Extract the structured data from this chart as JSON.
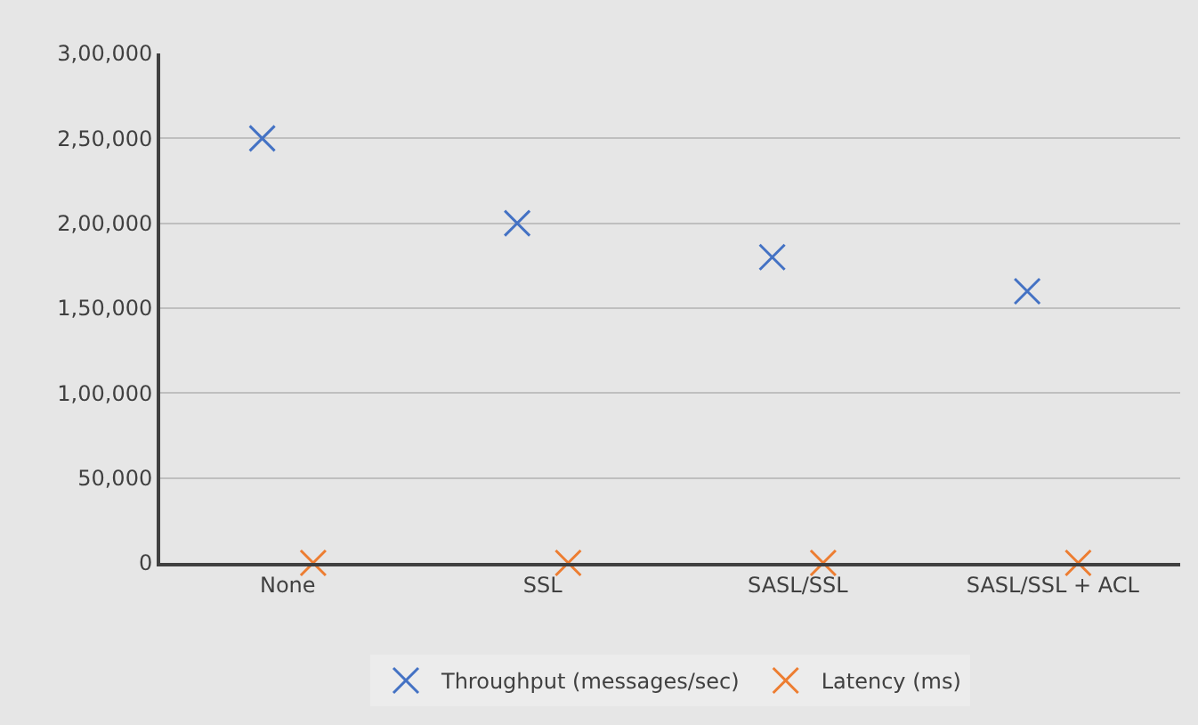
{
  "chart_data": {
    "type": "scatter",
    "categories": [
      "None",
      "SSL",
      "SASL/SSL",
      "SASL/SSL + ACL"
    ],
    "series": [
      {
        "name": "Throughput (messages/sec)",
        "color": "#4472c4",
        "marker": "cross",
        "values": [
          250000,
          200000,
          180000,
          160000
        ]
      },
      {
        "name": "Latency (ms)",
        "color": "#ed7d31",
        "marker": "cross",
        "values": [
          0,
          0,
          0,
          0
        ]
      }
    ],
    "ylim": [
      0,
      300000
    ],
    "yticks": [
      {
        "value": 0,
        "label": "0"
      },
      {
        "value": 50000,
        "label": "50,000"
      },
      {
        "value": 100000,
        "label": "1,00,000"
      },
      {
        "value": 150000,
        "label": "1,50,000"
      },
      {
        "value": 200000,
        "label": "2,00,000"
      },
      {
        "value": 250000,
        "label": "2,50,000"
      },
      {
        "value": 300000,
        "label": "3,00,000"
      }
    ],
    "grid": "y",
    "legend": "bottom"
  }
}
